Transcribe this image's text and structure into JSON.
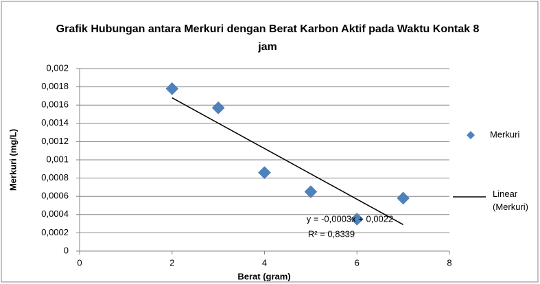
{
  "chart_data": {
    "type": "scatter",
    "title": "Grafik Hubungan antara Merkuri dengan Berat Karbon Aktif pada Waktu Kontak 8 jam",
    "x_label": "Berat (gram)",
    "y_label": "Merkuri (mg/L)",
    "series": [
      {
        "name": "Merkuri",
        "type": "scatter",
        "color": "#4f81bd",
        "x": [
          2,
          3,
          4,
          5,
          6,
          7
        ],
        "values": [
          0.00178,
          0.00157,
          0.00086,
          0.00065,
          0.00035,
          0.00058
        ]
      },
      {
        "name": "Linear (Merkuri)",
        "type": "line",
        "color": "#000000",
        "x": [
          2,
          7
        ],
        "values": [
          0.00168,
          0.00029
        ]
      }
    ],
    "annotations": [
      "y = -0,0003x + 0,0022",
      "R² = 0,8339"
    ],
    "xlim": [
      0,
      8
    ],
    "xticks": [
      0,
      2,
      4,
      6,
      8
    ],
    "ylim": [
      0,
      0.002
    ],
    "yticks": [
      0,
      {
        "value": 0.0002,
        "label": "0,0002"
      },
      {
        "value": 0.0004,
        "label": "0,0004"
      },
      {
        "value": 0.0006,
        "label": "0,0006"
      },
      {
        "value": 0.0008,
        "label": "0,0008"
      },
      {
        "value": 0.001,
        "label": "0,001"
      },
      {
        "value": 0.0012,
        "label": "0,0012"
      },
      {
        "value": 0.0014,
        "label": "0,0014"
      },
      {
        "value": 0.0016,
        "label": "0,0016"
      },
      {
        "value": 0.0018,
        "label": "0,0018"
      },
      {
        "value": 0.002,
        "label": "0,002"
      }
    ],
    "grid": true,
    "legend": "right"
  }
}
